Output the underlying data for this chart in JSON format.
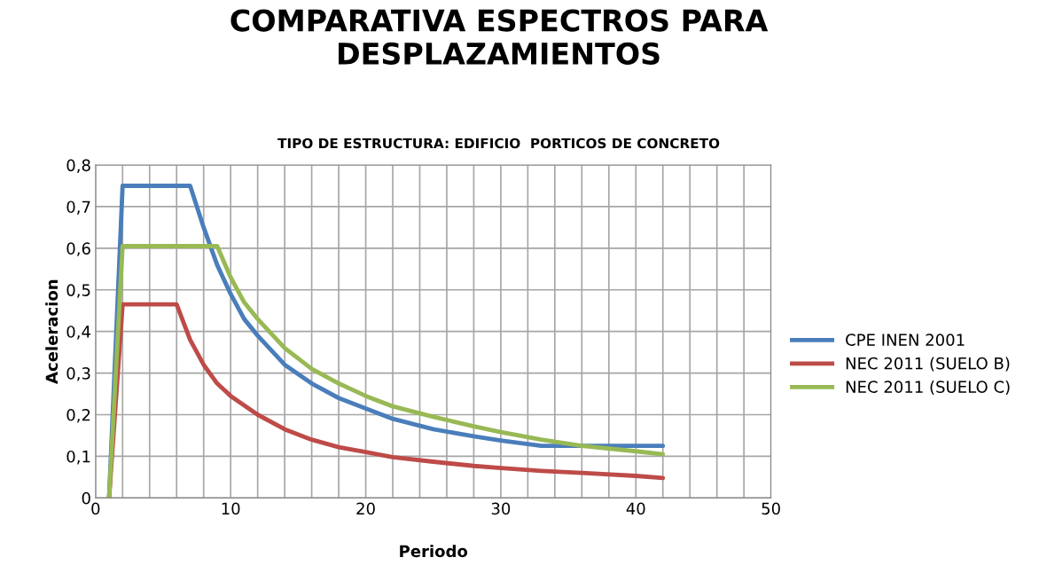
{
  "chart_data": {
    "type": "line",
    "title": "COMPARATIVA ESPECTROS PARA\nDESPLAZAMIENTOS",
    "subtitle": "TIPO DE ESTRUCTURA: EDIFICIO  PORTICOS DE CONCRETO",
    "xlabel": "Periodo",
    "ylabel": "Aceleracion",
    "xlim": [
      0,
      50
    ],
    "ylim": [
      0,
      0.8
    ],
    "xticks": [
      0,
      {
        "value": 2,
        "label": null
      },
      {
        "value": 4,
        "label": null
      },
      {
        "value": 6,
        "label": null
      },
      {
        "value": 8,
        "label": null
      },
      10,
      {
        "value": 12,
        "label": null
      },
      {
        "value": 14,
        "label": null
      },
      {
        "value": 16,
        "label": null
      },
      {
        "value": 18,
        "label": null
      },
      20,
      {
        "value": 22,
        "label": null
      },
      {
        "value": 24,
        "label": null
      },
      {
        "value": 26,
        "label": null
      },
      {
        "value": 28,
        "label": null
      },
      30,
      {
        "value": 32,
        "label": null
      },
      {
        "value": 34,
        "label": null
      },
      {
        "value": 36,
        "label": null
      },
      {
        "value": 38,
        "label": null
      },
      40,
      {
        "value": 42,
        "label": null
      },
      {
        "value": 44,
        "label": null
      },
      {
        "value": 46,
        "label": null
      },
      {
        "value": 48,
        "label": null
      },
      50
    ],
    "yticks": [
      {
        "value": 0,
        "label": "0"
      },
      {
        "value": 0.1,
        "label": "0,1"
      },
      {
        "value": 0.2,
        "label": "0,2"
      },
      {
        "value": 0.3,
        "label": "0,3"
      },
      {
        "value": 0.4,
        "label": "0,4"
      },
      {
        "value": 0.5,
        "label": "0,5"
      },
      {
        "value": 0.6,
        "label": "0,6"
      },
      {
        "value": 0.7,
        "label": "0,7"
      },
      {
        "value": 0.8,
        "label": "0,8"
      }
    ],
    "grid": true,
    "legend": "right",
    "marker": "none",
    "line_style": "solid",
    "series": [
      {
        "name": "CPE INEN 2001",
        "color": "#4a7ebb",
        "x": [
          1,
          2,
          7,
          8,
          9,
          10,
          11,
          12,
          14,
          16,
          18,
          20,
          22,
          25,
          28,
          30,
          33,
          36,
          42
        ],
        "values": [
          0,
          0.75,
          0.75,
          0.65,
          0.56,
          0.49,
          0.43,
          0.39,
          0.32,
          0.275,
          0.24,
          0.215,
          0.19,
          0.165,
          0.148,
          0.138,
          0.125,
          0.125,
          0.125
        ]
      },
      {
        "name": "NEC 2011 (SUELO B)",
        "color": "#be4b48",
        "x": [
          1,
          2,
          6,
          7,
          8,
          9,
          10,
          12,
          14,
          16,
          18,
          20,
          22,
          25,
          28,
          30,
          33,
          36,
          40,
          42
        ],
        "values": [
          0,
          0.465,
          0.465,
          0.38,
          0.32,
          0.275,
          0.245,
          0.2,
          0.165,
          0.14,
          0.122,
          0.11,
          0.098,
          0.087,
          0.077,
          0.072,
          0.065,
          0.06,
          0.053,
          0.048
        ]
      },
      {
        "name": "NEC 2011 (SUELO C)",
        "color": "#98b954",
        "x": [
          1,
          2,
          9,
          10,
          11,
          12,
          14,
          16,
          18,
          20,
          22,
          25,
          28,
          30,
          33,
          36,
          40,
          42
        ],
        "values": [
          0,
          0.605,
          0.605,
          0.53,
          0.47,
          0.43,
          0.36,
          0.31,
          0.275,
          0.245,
          0.22,
          0.195,
          0.172,
          0.158,
          0.14,
          0.125,
          0.112,
          0.105
        ]
      }
    ]
  }
}
